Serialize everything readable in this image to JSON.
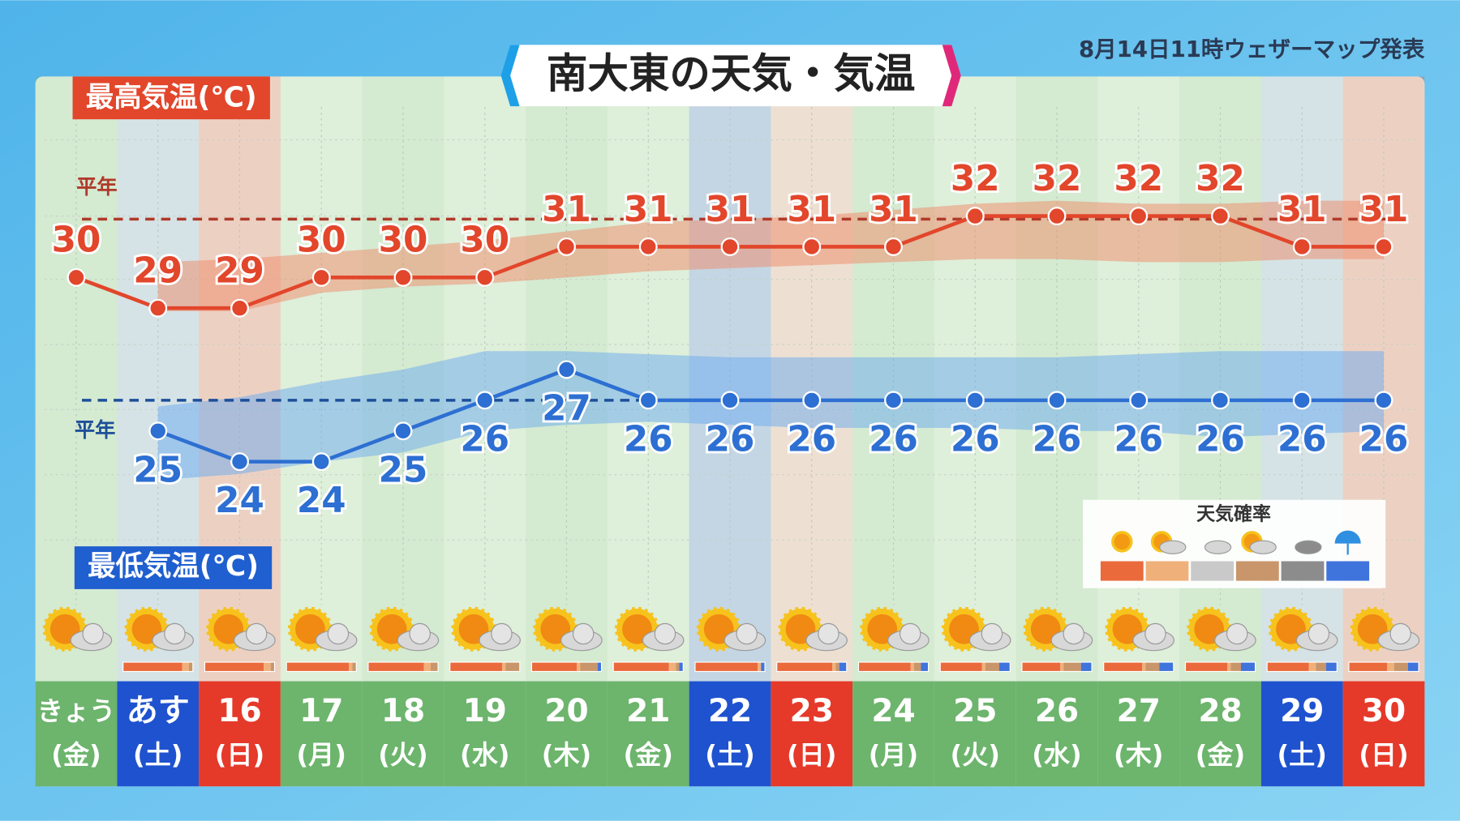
{
  "chart_data": {
    "type": "line",
    "title": "南大東の天気・気温",
    "subtitle": "8月14日11時ウェザーマップ発表",
    "normal_label": "平年",
    "days": [
      "きょう",
      "あす",
      "16",
      "17",
      "18",
      "19",
      "20",
      "21",
      "22",
      "23",
      "24",
      "25",
      "26",
      "27",
      "28",
      "29",
      "30"
    ],
    "weekdays": [
      "(金)",
      "(土)",
      "(日)",
      "(月)",
      "(火)",
      "(水)",
      "(木)",
      "(金)",
      "(土)",
      "(日)",
      "(月)",
      "(火)",
      "(水)",
      "(木)",
      "(金)",
      "(土)",
      "(日)"
    ],
    "day_colors": [
      "#6db46d",
      "#1f52cf",
      "#e5392a",
      "#6db46d",
      "#6db46d",
      "#6db46d",
      "#6db46d",
      "#6db46d",
      "#1f52cf",
      "#e5392a",
      "#6db46d",
      "#6db46d",
      "#6db46d",
      "#6db46d",
      "#6db46d",
      "#1f52cf",
      "#e5392a"
    ],
    "series": [
      {
        "name": "最高気温(℃)",
        "color": "#e2462b",
        "values": [
          30,
          29,
          29,
          30,
          30,
          30,
          31,
          31,
          31,
          31,
          31,
          32,
          32,
          32,
          32,
          31,
          31
        ]
      },
      {
        "name": "最低気温(℃)",
        "color": "#2d6fd2",
        "values": [
          null,
          25,
          24,
          24,
          25,
          26,
          27,
          26,
          26,
          26,
          26,
          26,
          26,
          26,
          26,
          26,
          26
        ]
      }
    ],
    "bands": [
      {
        "color": "#f08a68",
        "upper": [
          null,
          30.5,
          30.6,
          30.8,
          31,
          31.2,
          31.5,
          31.8,
          31.9,
          32,
          32.2,
          32.4,
          32.5,
          32.4,
          32.4,
          32.5,
          32.5
        ],
        "lower": [
          null,
          28.9,
          28.9,
          29.5,
          29.7,
          29.8,
          30,
          30.2,
          30.3,
          30.4,
          30.5,
          30.6,
          30.6,
          30.5,
          30.5,
          30.6,
          30.6
        ]
      },
      {
        "color": "#6aaaf0",
        "upper": [
          null,
          25.8,
          26.1,
          26.6,
          27,
          27.6,
          27.6,
          27.5,
          27.4,
          27.4,
          27.4,
          27.4,
          27.4,
          27.5,
          27.6,
          27.6,
          27.6
        ],
        "lower": [
          null,
          23.4,
          23.6,
          24,
          24.3,
          25,
          25.2,
          25.3,
          25.2,
          25.1,
          25.1,
          25.1,
          25,
          25,
          24.8,
          24.9,
          25
        ]
      }
    ],
    "normals": [
      31.9,
      26
    ],
    "normal_colors": [
      "#b03a2a",
      "#1d4f9a"
    ],
    "prob_title": "天気確率",
    "prob_colors": [
      "#ea6a3c",
      "#f0b07a",
      "#c9c9c9",
      "#c8966a",
      "#8c8c8c",
      "#3f74dc"
    ],
    "probabilities": [
      null,
      [
        85,
        10,
        0,
        5,
        0,
        0
      ],
      [
        85,
        10,
        0,
        5,
        0,
        0
      ],
      [
        90,
        5,
        0,
        5,
        0,
        0
      ],
      [
        80,
        10,
        0,
        10,
        0,
        0
      ],
      [
        75,
        5,
        0,
        20,
        0,
        0
      ],
      [
        65,
        5,
        0,
        25,
        0,
        5
      ],
      [
        80,
        10,
        0,
        5,
        0,
        5
      ],
      [
        90,
        5,
        0,
        0,
        0,
        5
      ],
      [
        80,
        5,
        0,
        5,
        0,
        10
      ],
      [
        75,
        5,
        0,
        10,
        0,
        10
      ],
      [
        60,
        5,
        0,
        20,
        0,
        15
      ],
      [
        55,
        5,
        0,
        25,
        0,
        15
      ],
      [
        55,
        5,
        0,
        20,
        0,
        20
      ],
      [
        60,
        5,
        0,
        15,
        0,
        20
      ],
      [
        60,
        10,
        0,
        15,
        0,
        15
      ],
      [
        55,
        10,
        0,
        20,
        0,
        15
      ]
    ]
  }
}
